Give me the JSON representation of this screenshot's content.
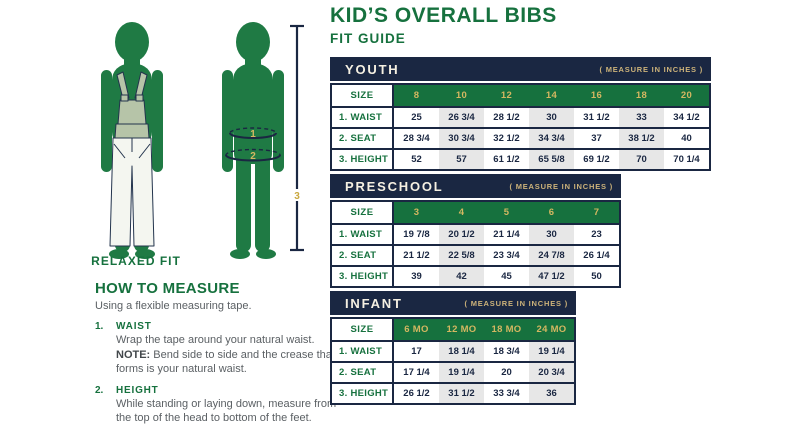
{
  "header": {
    "title": "KID’S OVERALL BIBS",
    "subtitle": "FIT GUIDE"
  },
  "figures": {
    "relaxed_fit_label": "RELAXED FIT",
    "waist_marker": "1",
    "seat_marker": "2",
    "height_marker": "3"
  },
  "how_to_measure": {
    "heading": "HOW TO MEASURE",
    "intro": "Using a flexible measuring tape.",
    "steps": [
      {
        "num": "1.",
        "title": "WAIST",
        "text": "Wrap the tape around your natural waist.",
        "note_label": "NOTE:",
        "note_text": "Bend side to side and the crease that forms is your natural waist."
      },
      {
        "num": "2.",
        "title": "HEIGHT",
        "text": "While standing or laying down, measure from the top of the head to bottom of the feet."
      }
    ]
  },
  "tables": [
    {
      "name": "YOUTH",
      "measure_note": "( MEASURE IN INCHES )",
      "size_label": "SIZE",
      "sizes": [
        "8",
        "10",
        "12",
        "14",
        "16",
        "18",
        "20"
      ],
      "rows": [
        {
          "label": "1.  WAIST",
          "values": [
            "25",
            "26 3/4",
            "28 1/2",
            "30",
            "31 1/2",
            "33",
            "34 1/2"
          ]
        },
        {
          "label": "2.  SEAT",
          "values": [
            "28 3/4",
            "30 3/4",
            "32 1/2",
            "34 3/4",
            "37",
            "38 1/2",
            "40"
          ]
        },
        {
          "label": "3.  HEIGHT",
          "values": [
            "52",
            "57",
            "61 1/2",
            "65 5/8",
            "69 1/2",
            "70",
            "70 1/4"
          ]
        }
      ]
    },
    {
      "name": "PRESCHOOL",
      "measure_note": "( MEASURE IN INCHES )",
      "size_label": "SIZE",
      "sizes": [
        "3",
        "4",
        "5",
        "6",
        "7"
      ],
      "rows": [
        {
          "label": "1.  WAIST",
          "values": [
            "19 7/8",
            "20 1/2",
            "21 1/4",
            "30",
            "23"
          ]
        },
        {
          "label": "2.  SEAT",
          "values": [
            "21 1/2",
            "22 5/8",
            "23 3/4",
            "24 7/8",
            "26 1/4"
          ]
        },
        {
          "label": "3.  HEIGHT",
          "values": [
            "39",
            "42",
            "45",
            "47 1/2",
            "50"
          ]
        }
      ]
    },
    {
      "name": "INFANT",
      "measure_note": "( MEASURE IN INCHES )",
      "size_label": "SIZE",
      "sizes": [
        "6 MO",
        "12 MO",
        "18 MO",
        "24 MO"
      ],
      "rows": [
        {
          "label": "1.  WAIST",
          "values": [
            "17",
            "18 1/4",
            "18 3/4",
            "19 1/4"
          ]
        },
        {
          "label": "2.  SEAT",
          "values": [
            "17 1/4",
            "19 1/4",
            "20",
            "20 3/4"
          ]
        },
        {
          "label": "3.  HEIGHT",
          "values": [
            "26 1/2",
            "31 1/2",
            "33 3/4",
            "36"
          ]
        }
      ]
    }
  ],
  "colors": {
    "green": "#16713e",
    "navy": "#1a2742",
    "gold": "#d4b761",
    "note_tan": "#cdb37a",
    "stripe_gray": "#e7e7e7",
    "sage": "#b6c4a8",
    "silhouette_green": "#1f7a44"
  }
}
